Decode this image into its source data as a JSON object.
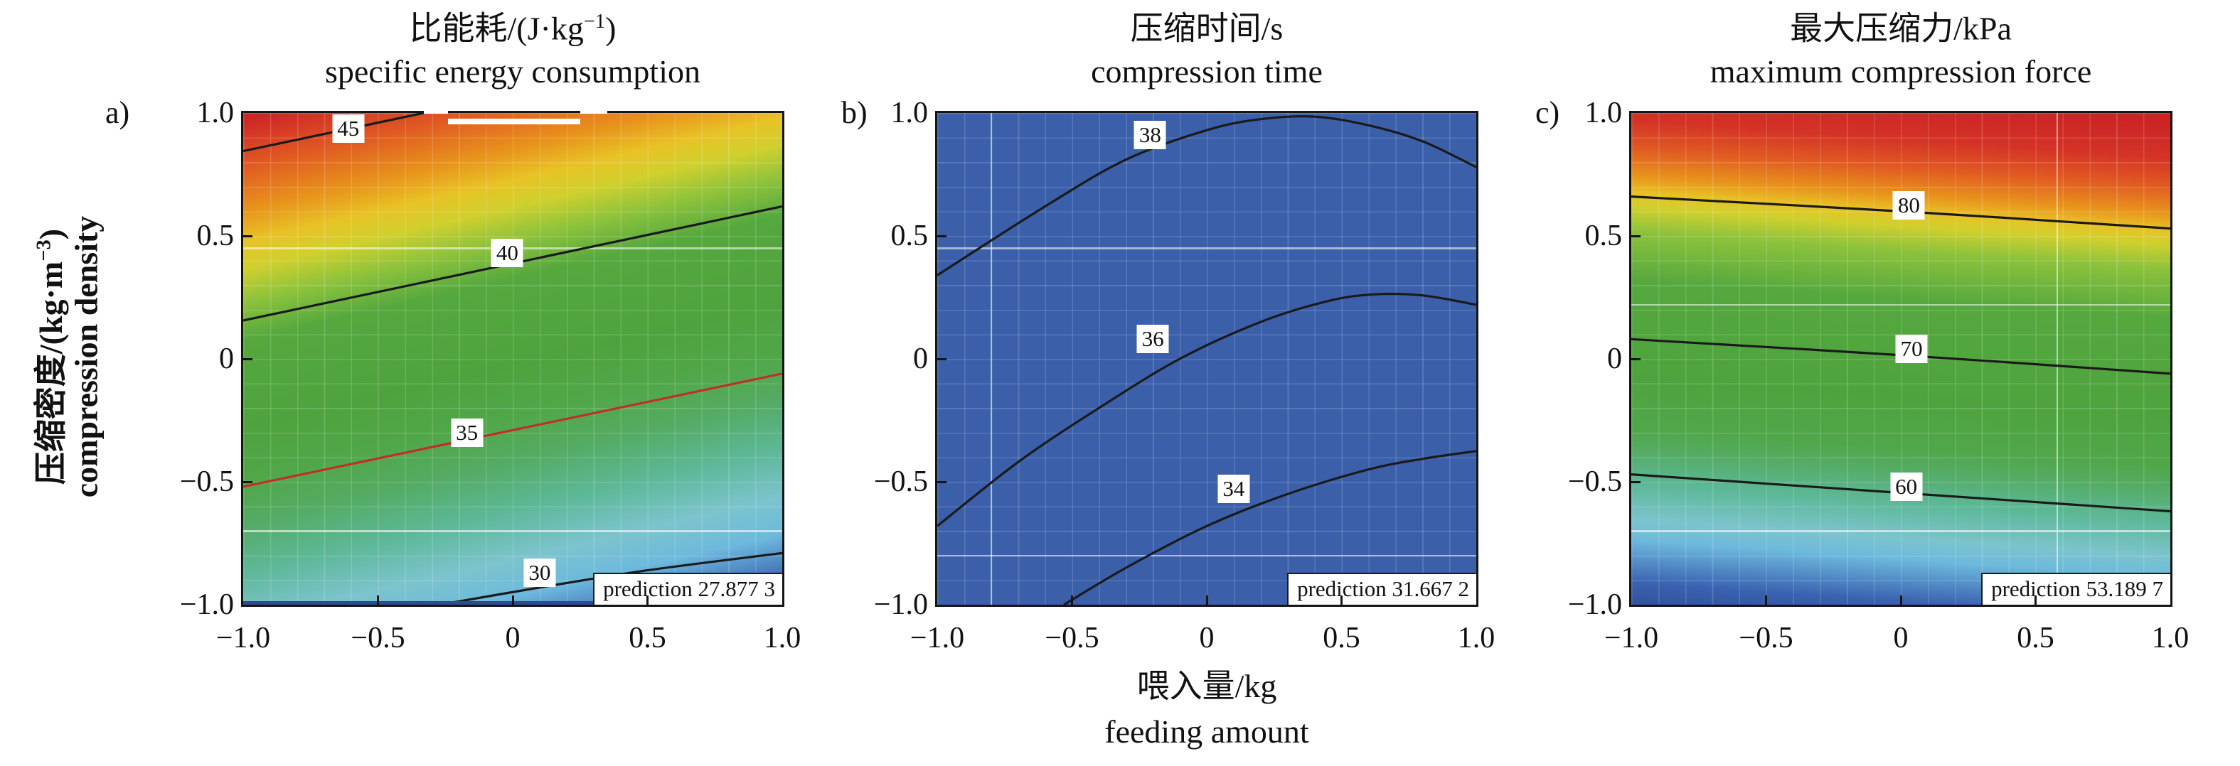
{
  "figure": {
    "panels": [
      {
        "letter": "a)",
        "title_cn_pre": "比能耗/(J·kg",
        "title_cn_sup": "−1",
        "title_cn_post": ")",
        "title_en": "specific energy consumption",
        "prediction": "prediction 27.877 3"
      },
      {
        "letter": "b)",
        "title_cn_pre": "压缩时间/s",
        "title_cn_sup": "",
        "title_cn_post": "",
        "title_en": "compression time",
        "prediction": "prediction 31.667 2"
      },
      {
        "letter": "c)",
        "title_cn_pre": "最大压缩力/kPa",
        "title_cn_sup": "",
        "title_cn_post": "",
        "title_en": "maximum compression force",
        "prediction": "prediction 53.189 7"
      }
    ],
    "x_axis": {
      "label_cn": "喂入量/kg",
      "label_en": "feeding amount",
      "ticks": [
        "−1.0",
        "−0.5",
        "0",
        "0.5",
        "1.0"
      ]
    },
    "y_axis": {
      "label_cn_pre": "压缩密度/(kg·m",
      "label_cn_sup": "−3",
      "label_cn_post": ")",
      "label_en": "compression density",
      "ticks": [
        "1.0",
        "0.5",
        "0",
        "−0.5",
        "−1.0"
      ]
    }
  },
  "chart_data": [
    {
      "id": "a",
      "type": "contour-heatmap",
      "title": "specific energy consumption (J·kg−1)",
      "x_range": [
        -1,
        1
      ],
      "y_range": [
        -1,
        1
      ],
      "prediction_value": 27.8773,
      "corner_values": {
        "top_left": 46.2,
        "top_right": 42.8,
        "bottom_left": 31.5,
        "bottom_right": 28.1
      },
      "fill": {
        "kind": "gradient",
        "angle_deg": 347,
        "stops": [
          {
            "pct": 0,
            "color": "#32549e"
          },
          {
            "pct": 3.7,
            "color": "#3a62b0"
          },
          {
            "pct": 11.4,
            "color": "#6db9dd"
          },
          {
            "pct": 17.5,
            "color": "#7cc4cd"
          },
          {
            "pct": 25.3,
            "color": "#5db898"
          },
          {
            "pct": 33.6,
            "color": "#54ab62"
          },
          {
            "pct": 40.8,
            "color": "#50a748"
          },
          {
            "pct": 49,
            "color": "#4fa33e"
          },
          {
            "pct": 63,
            "color": "#55a83e"
          },
          {
            "pct": 69.1,
            "color": "#8cc23c"
          },
          {
            "pct": 74.6,
            "color": "#cfd02e"
          },
          {
            "pct": 79,
            "color": "#e8c326"
          },
          {
            "pct": 84,
            "color": "#e8941c"
          },
          {
            "pct": 91.2,
            "color": "#e05a22"
          },
          {
            "pct": 96.8,
            "color": "#d43326"
          },
          {
            "pct": 100,
            "color": "#c92025"
          }
        ]
      },
      "contours": [
        {
          "level": "45",
          "color": "#1a1a1a",
          "points": [
            [
              -1,
              0.845
            ],
            [
              -0.33,
              1.0
            ]
          ],
          "label_at": [
            -0.61,
            0.935
          ]
        },
        {
          "level": "40",
          "color": "#1a1a1a",
          "points": [
            [
              -1,
              0.156
            ],
            [
              1,
              0.62
            ]
          ],
          "label_at": [
            -0.02,
            0.43
          ]
        },
        {
          "level": "35",
          "color": "#c03028",
          "points": [
            [
              -1,
              -0.52
            ],
            [
              1,
              -0.06
            ]
          ],
          "label_at": [
            -0.17,
            -0.3
          ]
        },
        {
          "level": "30",
          "color": "#1a1a1a",
          "points": [
            [
              -0.27,
              -1
            ],
            [
              0.1,
              -0.93
            ],
            [
              0.5,
              -0.86
            ],
            [
              1,
              -0.79
            ]
          ],
          "label_at": [
            0.1,
            -0.87
          ]
        }
      ],
      "grid": {
        "minor_step": 0.1,
        "bright_lines": [
          {
            "axis": "y",
            "at": 0.45
          },
          {
            "axis": "y",
            "at": -0.7
          }
        ]
      },
      "artifacts": {
        "top_white_bar": {
          "x1": -0.24,
          "x2": 0.25,
          "y": 0.965
        },
        "border_gaps": [
          {
            "x1": -0.33,
            "x2": -0.24
          },
          {
            "x1": 0.25,
            "x2": 0.35
          }
        ],
        "bottom_strip_color": "#2c4c92"
      }
    },
    {
      "id": "b",
      "type": "contour-heatmap",
      "title": "compression time (s)",
      "x_range": [
        -1,
        1
      ],
      "y_range": [
        -1,
        1
      ],
      "prediction_value": 31.6672,
      "fill": {
        "kind": "solid",
        "color": "#3b5fa9"
      },
      "contours": [
        {
          "level": "38",
          "color": "#1a1a1a",
          "points": [
            [
              -1,
              0.34
            ],
            [
              -0.6,
              0.62
            ],
            [
              -0.3,
              0.81
            ],
            [
              0,
              0.93
            ],
            [
              0.2,
              0.975
            ],
            [
              0.4,
              0.985
            ],
            [
              0.6,
              0.95
            ],
            [
              0.8,
              0.885
            ],
            [
              1,
              0.78
            ]
          ],
          "label_at": [
            -0.21,
            0.91
          ]
        },
        {
          "level": "36",
          "color": "#1a1a1a",
          "points": [
            [
              -1,
              -0.68
            ],
            [
              -0.7,
              -0.42
            ],
            [
              -0.4,
              -0.2
            ],
            [
              -0.1,
              0.0
            ],
            [
              0.2,
              0.15
            ],
            [
              0.45,
              0.235
            ],
            [
              0.62,
              0.262
            ],
            [
              0.8,
              0.258
            ],
            [
              1,
              0.22
            ]
          ],
          "label_at": [
            -0.2,
            0.08
          ]
        },
        {
          "level": "34",
          "color": "#1a1a1a",
          "points": [
            [
              -0.53,
              -1
            ],
            [
              -0.3,
              -0.85
            ],
            [
              0,
              -0.68
            ],
            [
              0.3,
              -0.55
            ],
            [
              0.6,
              -0.45
            ],
            [
              0.8,
              -0.407
            ],
            [
              1,
              -0.375
            ]
          ],
          "label_at": [
            0.1,
            -0.53
          ]
        }
      ],
      "grid": {
        "minor_step": 0.1,
        "bright_lines": [
          {
            "axis": "y",
            "at": 0.45
          },
          {
            "axis": "y",
            "at": -0.8
          },
          {
            "axis": "x",
            "at": -0.8
          }
        ]
      }
    },
    {
      "id": "c",
      "type": "contour-heatmap",
      "title": "maximum compression force (kPa)",
      "x_range": [
        -1,
        1
      ],
      "y_range": [
        -1,
        1
      ],
      "prediction_value": 53.1897,
      "corner_values": {
        "top_left": 86.4,
        "top_right": 88.7,
        "bottom_left": 51.0,
        "bottom_right": 53.3
      },
      "fill": {
        "kind": "gradient",
        "angle_deg": 4,
        "stops": [
          {
            "pct": 0,
            "color": "#31539d"
          },
          {
            "pct": 4.2,
            "color": "#3a62b0"
          },
          {
            "pct": 12.2,
            "color": "#6db9dd"
          },
          {
            "pct": 16.1,
            "color": "#7cc4cd"
          },
          {
            "pct": 22.8,
            "color": "#5db898"
          },
          {
            "pct": 29.4,
            "color": "#54ab62"
          },
          {
            "pct": 33.3,
            "color": "#50a74a"
          },
          {
            "pct": 42.6,
            "color": "#4fa33e"
          },
          {
            "pct": 61.1,
            "color": "#55a83e"
          },
          {
            "pct": 70.4,
            "color": "#8cc23c"
          },
          {
            "pct": 75.1,
            "color": "#cfd02e"
          },
          {
            "pct": 77.8,
            "color": "#e8c326"
          },
          {
            "pct": 81,
            "color": "#e8941c"
          },
          {
            "pct": 86.2,
            "color": "#e05a22"
          },
          {
            "pct": 91.5,
            "color": "#d43326"
          },
          {
            "pct": 100,
            "color": "#c92025"
          }
        ]
      },
      "contours": [
        {
          "level": "80",
          "color": "#1a1a1a",
          "points": [
            [
              -1,
              0.66
            ],
            [
              0,
              0.6
            ],
            [
              1,
              0.53
            ]
          ],
          "label_at": [
            0.03,
            0.625
          ]
        },
        {
          "level": "70",
          "color": "#1a1a1a",
          "points": [
            [
              -1,
              0.08
            ],
            [
              0,
              0.015
            ],
            [
              1,
              -0.06
            ]
          ],
          "label_at": [
            0.04,
            0.04
          ]
        },
        {
          "level": "60",
          "color": "#1a1a1a",
          "points": [
            [
              -1,
              -0.47
            ],
            [
              0,
              -0.545
            ],
            [
              1,
              -0.62
            ]
          ],
          "label_at": [
            0.02,
            -0.52
          ]
        }
      ],
      "grid": {
        "minor_step": 0.1,
        "bright_lines": [
          {
            "axis": "y",
            "at": 0.22
          },
          {
            "axis": "y",
            "at": -0.7
          },
          {
            "axis": "x",
            "at": 0.58
          }
        ]
      }
    }
  ]
}
